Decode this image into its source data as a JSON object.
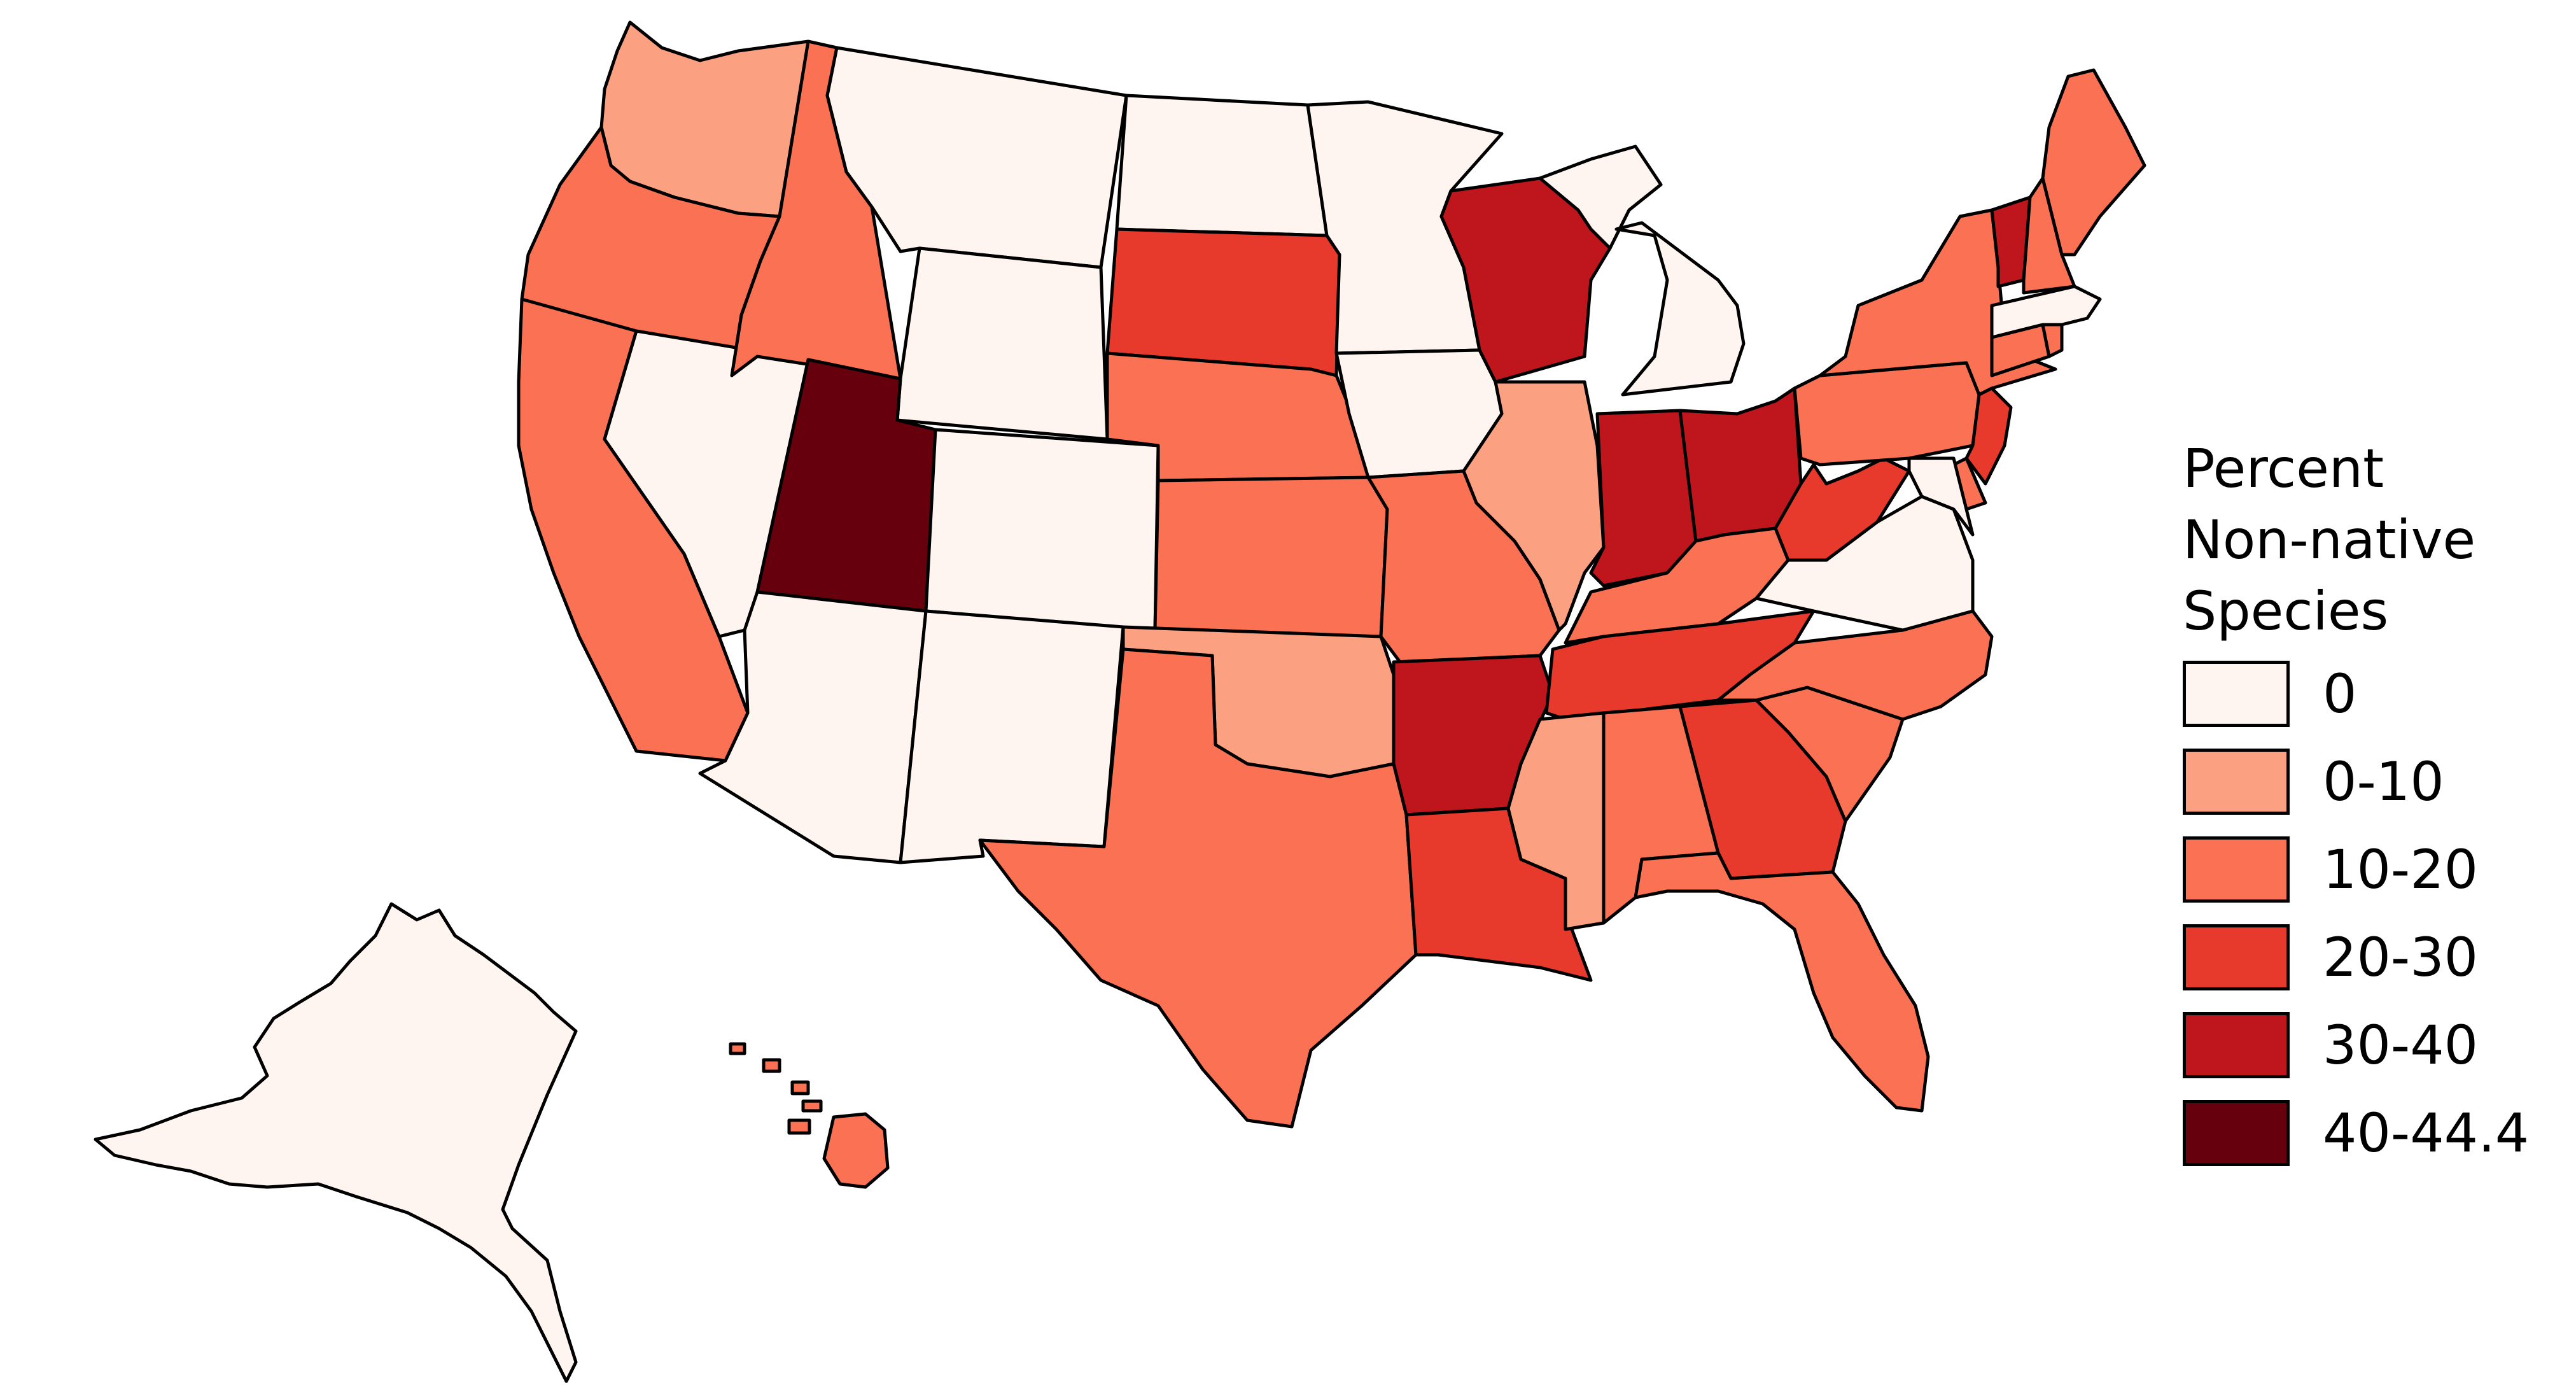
{
  "legend": {
    "title_lines": [
      "Percent",
      "Non-native",
      "Species"
    ],
    "bins": [
      {
        "label": "0",
        "color": "#fff5f0"
      },
      {
        "label": "0-10",
        "color": "#fca082"
      },
      {
        "label": "10-20",
        "color": "#fa7253"
      },
      {
        "label": "20-30",
        "color": "#e83a2c"
      },
      {
        "label": "30-40",
        "color": "#be161c"
      },
      {
        "label": "40-44.4",
        "color": "#67000d"
      }
    ]
  },
  "states": [
    {
      "name": "Alaska",
      "bin": "0"
    },
    {
      "name": "Hawaii",
      "bin": "10-20"
    },
    {
      "name": "Washington",
      "bin": "0-10"
    },
    {
      "name": "Oregon",
      "bin": "10-20"
    },
    {
      "name": "California",
      "bin": "10-20"
    },
    {
      "name": "Nevada",
      "bin": "0"
    },
    {
      "name": "Idaho",
      "bin": "10-20"
    },
    {
      "name": "Montana",
      "bin": "0"
    },
    {
      "name": "Wyoming",
      "bin": "0"
    },
    {
      "name": "Utah",
      "bin": "40-44.4"
    },
    {
      "name": "Arizona",
      "bin": "0"
    },
    {
      "name": "Colorado",
      "bin": "0"
    },
    {
      "name": "New Mexico",
      "bin": "0"
    },
    {
      "name": "North Dakota",
      "bin": "0"
    },
    {
      "name": "South Dakota",
      "bin": "20-30"
    },
    {
      "name": "Nebraska",
      "bin": "10-20"
    },
    {
      "name": "Kansas",
      "bin": "10-20"
    },
    {
      "name": "Oklahoma",
      "bin": "0-10"
    },
    {
      "name": "Texas",
      "bin": "10-20"
    },
    {
      "name": "Minnesota",
      "bin": "0"
    },
    {
      "name": "Iowa",
      "bin": "0"
    },
    {
      "name": "Missouri",
      "bin": "10-20"
    },
    {
      "name": "Arkansas",
      "bin": "30-40"
    },
    {
      "name": "Louisiana",
      "bin": "20-30"
    },
    {
      "name": "Wisconsin",
      "bin": "30-40"
    },
    {
      "name": "Illinois",
      "bin": "0-10"
    },
    {
      "name": "Michigan",
      "bin": "0"
    },
    {
      "name": "Indiana",
      "bin": "30-40"
    },
    {
      "name": "Ohio",
      "bin": "30-40"
    },
    {
      "name": "Kentucky",
      "bin": "10-20"
    },
    {
      "name": "Tennessee",
      "bin": "20-30"
    },
    {
      "name": "Mississippi",
      "bin": "0-10"
    },
    {
      "name": "Alabama",
      "bin": "10-20"
    },
    {
      "name": "Georgia",
      "bin": "20-30"
    },
    {
      "name": "Florida",
      "bin": "10-20"
    },
    {
      "name": "South Carolina",
      "bin": "10-20"
    },
    {
      "name": "North Carolina",
      "bin": "10-20"
    },
    {
      "name": "Virginia",
      "bin": "0"
    },
    {
      "name": "West Virginia",
      "bin": "20-30"
    },
    {
      "name": "Pennsylvania",
      "bin": "10-20"
    },
    {
      "name": "New York",
      "bin": "10-20"
    },
    {
      "name": "New Jersey",
      "bin": "20-30"
    },
    {
      "name": "Delaware",
      "bin": "10-20"
    },
    {
      "name": "Maryland",
      "bin": "0"
    },
    {
      "name": "Connecticut",
      "bin": "10-20"
    },
    {
      "name": "Rhode Island",
      "bin": "10-20"
    },
    {
      "name": "Massachusetts",
      "bin": "0"
    },
    {
      "name": "Vermont",
      "bin": "30-40"
    },
    {
      "name": "New Hampshire",
      "bin": "10-20"
    },
    {
      "name": "Maine",
      "bin": "10-20"
    }
  ]
}
